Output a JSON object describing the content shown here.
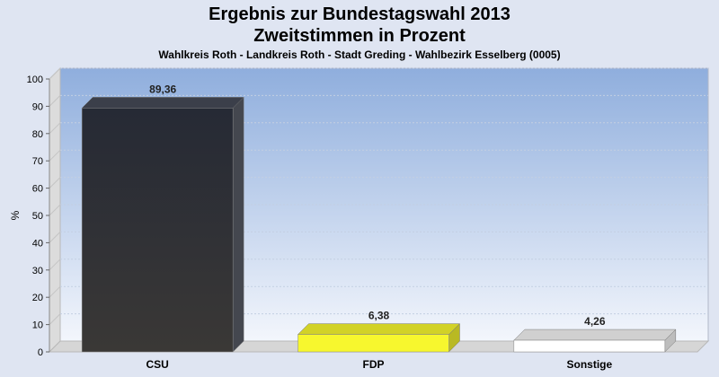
{
  "chart_data": {
    "type": "bar",
    "title": "Ergebnis zur Bundestagswahl 2013",
    "title_line2": "Zweitstimmen in Prozent",
    "subtitle": "Wahlkreis Roth - Landkreis Roth - Stadt Greding - Wahlbezirk Esselberg (0005)",
    "xlabel": "",
    "ylabel": "%",
    "ylim": [
      0,
      100
    ],
    "yticks": [
      0,
      10,
      20,
      30,
      40,
      50,
      60,
      70,
      80,
      90,
      100
    ],
    "categories": [
      "CSU",
      "FDP",
      "Sonstige"
    ],
    "values": [
      89.36,
      6.38,
      4.26
    ],
    "value_labels": [
      "89,36",
      "6,38",
      "4,26"
    ],
    "colors": [
      "#2b2e36",
      "#f7f72e",
      "#ffffff"
    ],
    "grid": true,
    "style": "3d-bars"
  }
}
